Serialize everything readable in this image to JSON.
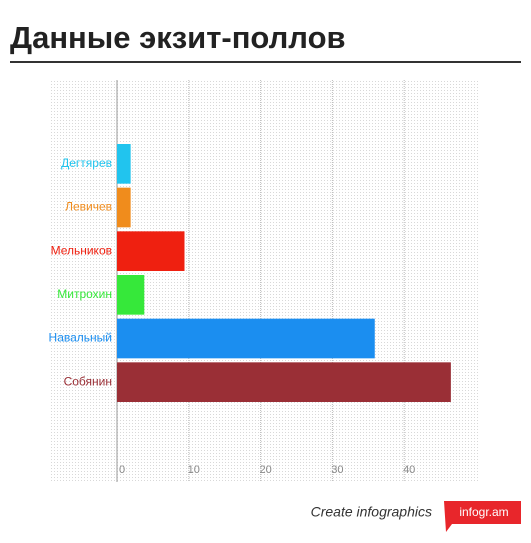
{
  "chart_data": {
    "type": "bar",
    "orientation": "horizontal",
    "title": "Данные экзит-поллов",
    "categories": [
      "Дегтярев",
      "Левичев",
      "Мельников",
      "Митрохин",
      "Навальный",
      "Собянин"
    ],
    "values": [
      1.9,
      1.9,
      9.4,
      3.8,
      35.9,
      46.5
    ],
    "colors": [
      "#21c4ee",
      "#f08c1c",
      "#ef2010",
      "#36e83a",
      "#1b8ef0",
      "#9a2f36"
    ],
    "xlim": [
      0,
      50
    ],
    "xticks": [
      0,
      10,
      20,
      30,
      40
    ],
    "grid": true
  },
  "footer": {
    "text": "Create infographics",
    "brand": "infogr.am"
  }
}
